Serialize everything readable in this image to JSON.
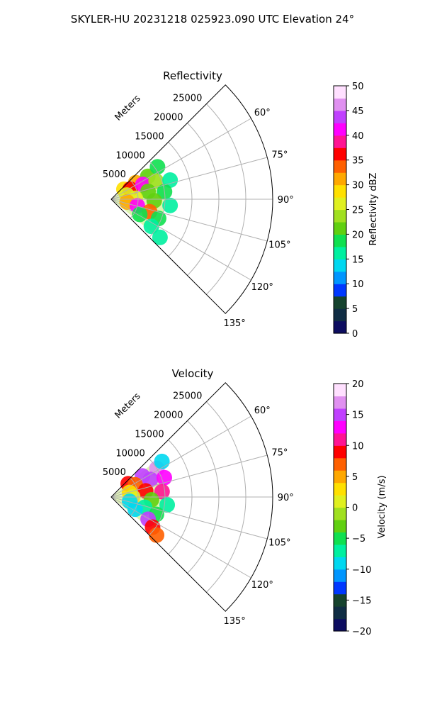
{
  "suptitle": "SKYLER-HU  20231218  025923.090 UTC Elevation 24°",
  "axes": {
    "range_label": "Meters",
    "range_ticks": [
      "5000",
      "10000",
      "15000",
      "20000",
      "25000"
    ],
    "range_values": [
      5000,
      10000,
      15000,
      20000,
      25000
    ],
    "range_max": 30000,
    "angle_ticks": [
      "60°",
      "75°",
      "90°",
      "105°",
      "120°",
      "135°"
    ],
    "angle_values": [
      60,
      75,
      90,
      105,
      120,
      135
    ],
    "sector_deg": [
      45,
      135
    ],
    "grid": true
  },
  "chart_data": [
    {
      "type": "heatmap",
      "title": "Reflectivity",
      "colorbar_label": "Reflectivity dBZ",
      "vmin": 0,
      "vmax": 50,
      "colorbar_ticks": [
        "0",
        "5",
        "10",
        "15",
        "20",
        "25",
        "30",
        "35",
        "40",
        "45",
        "50"
      ],
      "colorbar_values": [
        0,
        5,
        10,
        15,
        20,
        25,
        30,
        35,
        40,
        45,
        50
      ],
      "colors": [
        "#0d0d60",
        "#102d44",
        "#16432e",
        "#0038ff",
        "#0096ff",
        "#00d8f0",
        "#00f0a0",
        "#10e050",
        "#60d010",
        "#a0e020",
        "#e0f020",
        "#ffe000",
        "#ffa800",
        "#ff6000",
        "#ff0000",
        "#ff1493",
        "#ff00ff",
        "#c040ff",
        "#e090f0",
        "#ffe0ff"
      ],
      "data_extent_m": 10000,
      "cells": [
        {
          "az": 52,
          "r": 3000,
          "v": 28
        },
        {
          "az": 56,
          "r": 5500,
          "v": 30
        },
        {
          "az": 58,
          "r": 8000,
          "v": 22
        },
        {
          "az": 55,
          "r": 10500,
          "v": 18
        },
        {
          "az": 62,
          "r": 4000,
          "v": 36
        },
        {
          "az": 65,
          "r": 6500,
          "v": 42
        },
        {
          "az": 68,
          "r": 9000,
          "v": 24
        },
        {
          "az": 72,
          "r": 11500,
          "v": 17
        },
        {
          "az": 75,
          "r": 3000,
          "v": 26
        },
        {
          "az": 78,
          "r": 7000,
          "v": 22
        },
        {
          "az": 82,
          "r": 10000,
          "v": 19
        },
        {
          "az": 88,
          "r": 4500,
          "v": 25
        },
        {
          "az": 92,
          "r": 8000,
          "v": 20
        },
        {
          "az": 96,
          "r": 11000,
          "v": 16
        },
        {
          "az": 100,
          "r": 3000,
          "v": 30
        },
        {
          "az": 104,
          "r": 5000,
          "v": 40
        },
        {
          "az": 108,
          "r": 7500,
          "v": 34
        },
        {
          "az": 112,
          "r": 9500,
          "v": 19
        },
        {
          "az": 118,
          "r": 6000,
          "v": 18
        },
        {
          "az": 124,
          "r": 9000,
          "v": 16
        },
        {
          "az": 128,
          "r": 11500,
          "v": 15
        }
      ]
    },
    {
      "type": "heatmap",
      "title": "Velocity",
      "colorbar_label": "Velocity (m/s)",
      "vmin": -20,
      "vmax": 20,
      "colorbar_ticks": [
        "−20",
        "−15",
        "−10",
        "−5",
        "0",
        "5",
        "10",
        "15",
        "20"
      ],
      "colorbar_values": [
        -20,
        -15,
        -10,
        -5,
        0,
        5,
        10,
        15,
        20
      ],
      "colors": [
        "#0d0d60",
        "#102d44",
        "#16432e",
        "#0038ff",
        "#0096ff",
        "#00d8f0",
        "#00f0a0",
        "#10e050",
        "#60d010",
        "#a0e020",
        "#e0f020",
        "#ffe000",
        "#ffa800",
        "#ff6000",
        "#ff0000",
        "#ff1493",
        "#ff00ff",
        "#c040ff",
        "#e090f0",
        "#ffe0ff"
      ],
      "data_extent_m": 10000,
      "cells": [
        {
          "az": 52,
          "r": 4000,
          "v": 8
        },
        {
          "az": 56,
          "r": 7000,
          "v": 14
        },
        {
          "az": 58,
          "r": 10000,
          "v": 16
        },
        {
          "az": 55,
          "r": 11500,
          "v": -10
        },
        {
          "az": 63,
          "r": 5000,
          "v": 6
        },
        {
          "az": 66,
          "r": 8000,
          "v": 15
        },
        {
          "az": 70,
          "r": 10500,
          "v": 12
        },
        {
          "az": 76,
          "r": 3500,
          "v": 2
        },
        {
          "az": 80,
          "r": 6500,
          "v": 8
        },
        {
          "az": 84,
          "r": 9500,
          "v": 11
        },
        {
          "az": 90,
          "r": 4000,
          "v": 0
        },
        {
          "az": 94,
          "r": 7500,
          "v": -4
        },
        {
          "az": 98,
          "r": 10500,
          "v": -7
        },
        {
          "az": 103,
          "r": 3500,
          "v": -10
        },
        {
          "az": 107,
          "r": 6500,
          "v": -8
        },
        {
          "az": 111,
          "r": 9000,
          "v": -6
        },
        {
          "az": 117,
          "r": 5000,
          "v": -10
        },
        {
          "az": 121,
          "r": 8000,
          "v": 14
        },
        {
          "az": 126,
          "r": 9500,
          "v": 9
        },
        {
          "az": 130,
          "r": 11000,
          "v": 7
        }
      ]
    }
  ]
}
